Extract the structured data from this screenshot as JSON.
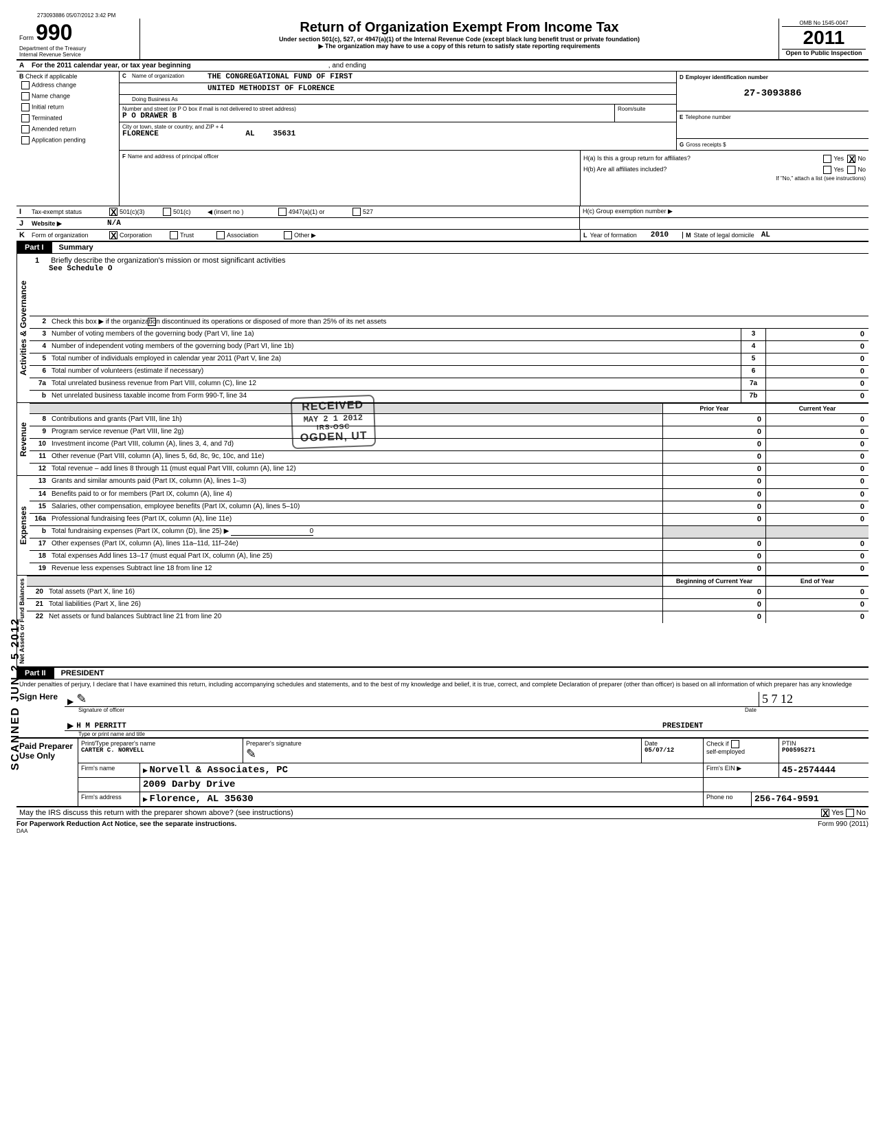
{
  "meta": {
    "header_seq": "273093886 05/07/2012 3:42 PM",
    "form_word": "Form",
    "form_number": "990",
    "dept": "Department of the Treasury",
    "irs": "Internal Revenue Service",
    "title": "Return of Organization Exempt From Income Tax",
    "subtitle": "Under section 501(c), 527, or 4947(a)(1) of the Internal Revenue Code (except black lung benefit trust or private foundation)",
    "note_arrow": "▶ The organization may have to use a copy of this return to satisfy state reporting requirements",
    "omb": "OMB No  1545-0047",
    "year": "2011",
    "open": "Open to Public Inspection"
  },
  "rowA": {
    "label_a": "A",
    "text": "For the 2011 calendar year, or tax year beginning",
    "and_ending": ", and ending"
  },
  "boxB": {
    "label": "B",
    "check_if": "Check if applicable",
    "items": [
      "Address change",
      "Name change",
      "Initial return",
      "Terminated",
      "Amended return",
      "Application pending"
    ]
  },
  "boxC": {
    "label": "C",
    "name_label": "Name of organization",
    "name1": "THE CONGREGATIONAL FUND OF FIRST",
    "name2": "UNITED METHODIST OF FLORENCE",
    "dba_label": "Doing Business As",
    "street_label": "Number and street (or P O  box if mail is not delivered to street address)",
    "street": "P O DRAWER B",
    "city_label": "City or town, state or country, and ZIP + 4",
    "city": "FLORENCE",
    "state": "AL",
    "zip": "35631",
    "room_label": "Room/suite",
    "f_label": "F",
    "f_text": "Name and address of principal officer"
  },
  "boxD": {
    "label": "D",
    "title": "Employer identification number",
    "value": "27-3093886"
  },
  "boxE": {
    "label": "E",
    "title": "Telephone number"
  },
  "boxG": {
    "label": "G",
    "title": "Gross receipts $"
  },
  "boxH": {
    "ha": "H(a)  Is this a group return for affiliates?",
    "hb": "H(b)  Are all affiliates included?",
    "hb_note": "If \"No,\" attach a list  (see instructions)",
    "hc": "H(c)  Group exemption number ▶",
    "yes": "Yes",
    "no": "No",
    "ha_no_checked": true
  },
  "rowI": {
    "label": "I",
    "title": "Tax-exempt status",
    "opts": [
      "501(c)(3)",
      "501(c)",
      "◀ (insert no )",
      "4947(a)(1) or",
      "527"
    ],
    "checked_idx": 0
  },
  "rowJ": {
    "label": "J",
    "title": "Website ▶",
    "value": "N/A"
  },
  "rowK": {
    "label": "K",
    "title": "Form of organization",
    "opts": [
      "Corporation",
      "Trust",
      "Association",
      "Other ▶"
    ],
    "checked_idx": 0,
    "l_label": "L",
    "l_title": "Year of formation",
    "l_value": "2010",
    "m_label": "M",
    "m_title": "State of legal domicile",
    "m_value": "AL"
  },
  "partI": {
    "tag": "Part I",
    "title": "Summary",
    "q1_num": "1",
    "q1": "Briefly describe the organization's mission or most significant activities",
    "q1_ans": "See Schedule O",
    "q2_num": "2",
    "q2": "Check this box ▶        if the organization discontinued its operations or disposed of more than 25% of its net assets",
    "lines_small": [
      {
        "n": "3",
        "t": "Number of voting members of the governing body (Part VI, line 1a)",
        "box": "3",
        "v": "0"
      },
      {
        "n": "4",
        "t": "Number of independent voting members of the governing body (Part VI, line 1b)",
        "box": "4",
        "v": "0"
      },
      {
        "n": "5",
        "t": "Total number of individuals employed in calendar year 2011 (Part V, line 2a)",
        "box": "5",
        "v": "0"
      },
      {
        "n": "6",
        "t": "Total number of volunteers (estimate if necessary)",
        "box": "6",
        "v": "0"
      },
      {
        "n": "7a",
        "t": "Total unrelated business revenue from Part VIII, column (C), line 12",
        "box": "7a",
        "v": "0"
      },
      {
        "n": "b",
        "t": "Net unrelated business taxable income from Form 990-T, line 34",
        "box": "7b",
        "v": "0"
      }
    ],
    "head_prior": "Prior Year",
    "head_current": "Current Year",
    "revenue": [
      {
        "n": "8",
        "t": "Contributions and grants (Part VIII, line 1h)",
        "p": "0",
        "c": "0"
      },
      {
        "n": "9",
        "t": "Program service revenue (Part VIII, line 2g)",
        "p": "0",
        "c": "0"
      },
      {
        "n": "10",
        "t": "Investment income (Part VIII, column (A), lines 3, 4, and 7d)",
        "p": "0",
        "c": "0"
      },
      {
        "n": "11",
        "t": "Other revenue (Part VIII, column (A), lines 5, 6d, 8c, 9c, 10c, and 11e)",
        "p": "0",
        "c": "0"
      },
      {
        "n": "12",
        "t": "Total revenue – add lines 8 through 11 (must equal Part VIII, column (A), line 12)",
        "p": "0",
        "c": "0"
      }
    ],
    "expenses": [
      {
        "n": "13",
        "t": "Grants and similar amounts paid (Part IX, column (A), lines 1–3)",
        "p": "0",
        "c": "0"
      },
      {
        "n": "14",
        "t": "Benefits paid to or for members (Part IX, column (A), line 4)",
        "p": "0",
        "c": "0"
      },
      {
        "n": "15",
        "t": "Salaries, other compensation, employee benefits (Part IX, column (A), lines 5–10)",
        "p": "0",
        "c": "0"
      },
      {
        "n": "16a",
        "t": "Professional fundraising fees (Part IX, column (A), line 11e)",
        "p": "0",
        "c": "0"
      },
      {
        "n": "b",
        "t": "Total fundraising expenses (Part IX, column (D), line 25) ▶",
        "p": "",
        "c": "",
        "fund": "0"
      },
      {
        "n": "17",
        "t": "Other expenses (Part IX, column (A), lines 11a–11d, 11f–24e)",
        "p": "0",
        "c": "0"
      },
      {
        "n": "18",
        "t": "Total expenses  Add lines 13–17 (must equal Part IX, column (A), line 25)",
        "p": "0",
        "c": "0"
      },
      {
        "n": "19",
        "t": "Revenue less expenses  Subtract line 18 from line 12",
        "p": "0",
        "c": "0"
      }
    ],
    "head_begin": "Beginning of Current Year",
    "head_end": "End of Year",
    "net": [
      {
        "n": "20",
        "t": "Total assets (Part X, line 16)",
        "p": "0",
        "c": "0"
      },
      {
        "n": "21",
        "t": "Total liabilities (Part X, line 26)",
        "p": "0",
        "c": "0"
      },
      {
        "n": "22",
        "t": "Net assets or fund balances  Subtract line 21 from line 20",
        "p": "0",
        "c": "0"
      }
    ],
    "side1": "Activities & Governance",
    "side2": "Revenue",
    "side3": "Expenses",
    "side4": "Net Assets or Fund Balances"
  },
  "received_stamp": {
    "line1": "RECEIVED",
    "date": "MAY 2 1 2012",
    "line2": "IRS-OSC",
    "line3": "OGDEN, UT"
  },
  "scanned_stamp": "SCANNED  JUN  2 5  2012",
  "partII": {
    "tag": "Part II",
    "title": "PRESIDENT",
    "perjury": "Under penalties of perjury, I declare that I have examined this return, including accompanying schedules and statements, and to the best of my knowledge and belief, it is true, correct, and complete  Declaration of preparer (other than officer) is based on all information of which preparer has any knowledge",
    "sign_here": "Sign Here",
    "sig_label": "Signature of officer",
    "date_label": "Date",
    "sig_date": "5   7   12",
    "name": "H M PERRITT",
    "type_label": "Type or print name and title"
  },
  "paid": {
    "left": "Paid Preparer Use Only",
    "row1": {
      "h1": "Print/Type preparer's name",
      "h2": "Preparer's signature",
      "h3": "Date",
      "h4": "Check         if",
      "h5": "PTIN",
      "name": "CARTER C. NORVELL",
      "date": "05/07/12",
      "self": "self-employed",
      "ptin": "P00595271"
    },
    "row2": {
      "label": "Firm's name",
      "arrow": "▶",
      "name": "Norvell & Associates, PC",
      "ein_label": "Firm's EIN ▶",
      "ein": "45-2574444"
    },
    "row3": {
      "addr_line1": "2009 Darby Drive"
    },
    "row4": {
      "label": "Firm's address",
      "arrow": "▶",
      "addr": "Florence, AL  35630",
      "phone_label": "Phone no",
      "phone": "256-764-9591"
    }
  },
  "footer": {
    "discuss": "May the IRS discuss this return with the preparer shown above? (see instructions)",
    "yes": "Yes",
    "no": "No",
    "yes_checked": true,
    "pra": "For Paperwork Reduction Act Notice, see the separate instructions.",
    "daa": "DAA",
    "form": "Form 990 (2011)"
  },
  "colors": {
    "text": "#000000",
    "bg": "#ffffff",
    "shade": "#dddddd"
  }
}
